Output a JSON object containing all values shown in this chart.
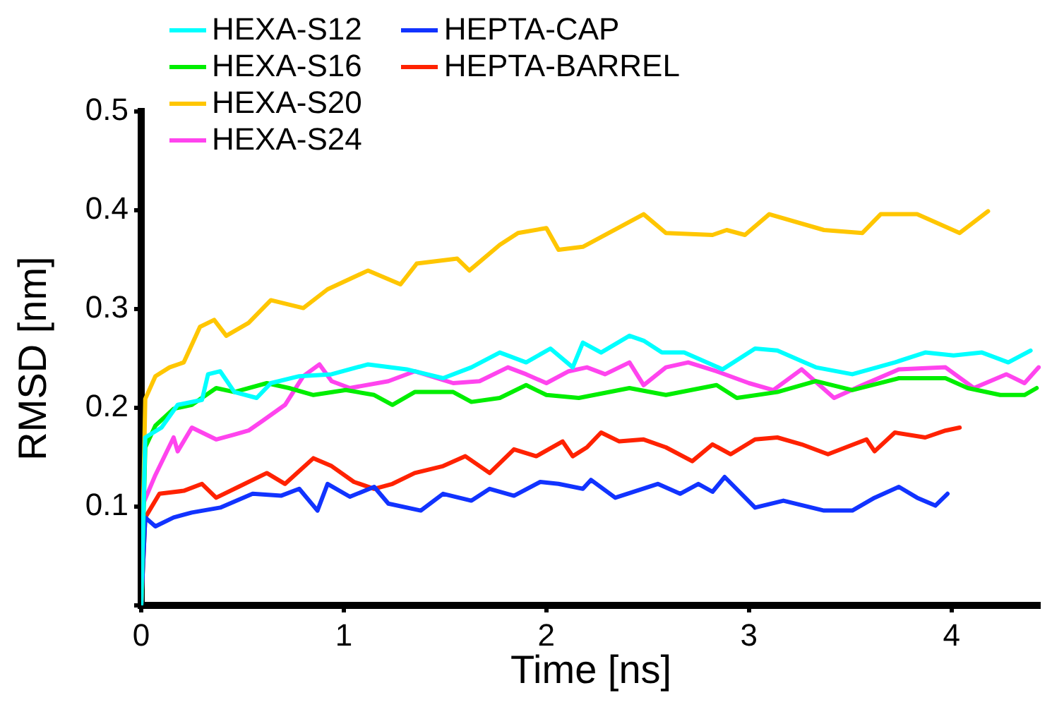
{
  "chart_data": {
    "type": "line",
    "xlabel": "Time [ns]",
    "ylabel": "RMSD [nm]",
    "xlim": [
      0,
      4.44
    ],
    "ylim": [
      0,
      0.5
    ],
    "xticks": [
      0,
      1,
      2,
      3,
      4
    ],
    "yticks": [
      {
        "value": 0,
        "label": null
      },
      0.1,
      0.2,
      0.3,
      0.4,
      0.5
    ],
    "legend": "top",
    "series": [
      {
        "name": "HEXA-S12",
        "color": "#00ffff",
        "x": [
          0,
          0.02,
          0.1,
          0.18,
          0.3,
          0.33,
          0.39,
          0.46,
          0.57,
          0.64,
          0.78,
          0.94,
          1.12,
          1.31,
          1.49,
          1.63,
          1.77,
          1.9,
          2.02,
          2.13,
          2.18,
          2.27,
          2.41,
          2.48,
          2.57,
          2.68,
          2.87,
          3.03,
          3.14,
          3.33,
          3.51,
          3.72,
          3.87,
          4.01,
          4.15,
          4.28,
          4.39
        ],
        "values": [
          0,
          0.17,
          0.18,
          0.203,
          0.208,
          0.234,
          0.237,
          0.216,
          0.21,
          0.225,
          0.232,
          0.234,
          0.244,
          0.239,
          0.23,
          0.241,
          0.256,
          0.246,
          0.26,
          0.241,
          0.266,
          0.256,
          0.273,
          0.268,
          0.256,
          0.256,
          0.239,
          0.26,
          0.258,
          0.241,
          0.234,
          0.246,
          0.256,
          0.253,
          0.256,
          0.246,
          0.258
        ]
      },
      {
        "name": "HEXA-S16",
        "color": "#00ee00",
        "x": [
          0,
          0.02,
          0.07,
          0.16,
          0.25,
          0.37,
          0.46,
          0.62,
          0.73,
          0.85,
          1.01,
          1.15,
          1.24,
          1.35,
          1.54,
          1.63,
          1.77,
          1.9,
          2.0,
          2.16,
          2.41,
          2.59,
          2.84,
          2.94,
          3.14,
          3.33,
          3.51,
          3.74,
          3.97,
          4.08,
          4.24,
          4.36,
          4.42
        ],
        "values": [
          0,
          0.16,
          0.182,
          0.199,
          0.203,
          0.22,
          0.216,
          0.225,
          0.22,
          0.213,
          0.218,
          0.213,
          0.203,
          0.216,
          0.216,
          0.206,
          0.21,
          0.223,
          0.213,
          0.21,
          0.22,
          0.213,
          0.223,
          0.21,
          0.216,
          0.227,
          0.218,
          0.23,
          0.23,
          0.22,
          0.213,
          0.213,
          0.22
        ]
      },
      {
        "name": "HEXA-S20",
        "color": "#ffc600",
        "x": [
          0,
          0.02,
          0.07,
          0.14,
          0.21,
          0.29,
          0.36,
          0.42,
          0.53,
          0.64,
          0.8,
          0.92,
          1.12,
          1.28,
          1.36,
          1.56,
          1.62,
          1.77,
          1.86,
          2.0,
          2.06,
          2.18,
          2.48,
          2.59,
          2.82,
          2.89,
          2.98,
          3.1,
          3.37,
          3.56,
          3.65,
          3.83,
          4.04,
          4.18
        ],
        "values": [
          0,
          0.209,
          0.232,
          0.241,
          0.246,
          0.282,
          0.289,
          0.273,
          0.286,
          0.309,
          0.301,
          0.32,
          0.339,
          0.325,
          0.346,
          0.351,
          0.339,
          0.365,
          0.377,
          0.382,
          0.36,
          0.363,
          0.396,
          0.377,
          0.375,
          0.38,
          0.375,
          0.396,
          0.38,
          0.377,
          0.396,
          0.396,
          0.377,
          0.399
        ]
      },
      {
        "name": "HEXA-S24",
        "color": "#ff44ee",
        "x": [
          0,
          0.01,
          0.07,
          0.16,
          0.18,
          0.25,
          0.37,
          0.46,
          0.53,
          0.6,
          0.71,
          0.8,
          0.88,
          0.94,
          1.03,
          1.22,
          1.35,
          1.54,
          1.67,
          1.81,
          1.9,
          2.0,
          2.11,
          2.2,
          2.29,
          2.41,
          2.48,
          2.59,
          2.7,
          2.84,
          3.0,
          3.12,
          3.26,
          3.42,
          3.56,
          3.74,
          3.97,
          4.11,
          4.27,
          4.36,
          4.43
        ],
        "values": [
          0,
          0.103,
          0.132,
          0.17,
          0.156,
          0.18,
          0.168,
          0.173,
          0.177,
          0.187,
          0.203,
          0.232,
          0.244,
          0.227,
          0.22,
          0.227,
          0.237,
          0.225,
          0.227,
          0.241,
          0.234,
          0.225,
          0.237,
          0.241,
          0.234,
          0.246,
          0.223,
          0.241,
          0.246,
          0.237,
          0.225,
          0.218,
          0.239,
          0.21,
          0.223,
          0.239,
          0.241,
          0.22,
          0.234,
          0.225,
          0.241
        ]
      },
      {
        "name": "HEPTA-CAP",
        "color": "#1133ff",
        "x": [
          0,
          0.02,
          0.07,
          0.16,
          0.25,
          0.39,
          0.55,
          0.69,
          0.78,
          0.87,
          0.92,
          1.03,
          1.15,
          1.22,
          1.38,
          1.49,
          1.63,
          1.72,
          1.84,
          1.97,
          2.06,
          2.18,
          2.22,
          2.34,
          2.55,
          2.66,
          2.75,
          2.82,
          2.88,
          3.03,
          3.17,
          3.37,
          3.51,
          3.62,
          3.74,
          3.83,
          3.92,
          3.98
        ],
        "values": [
          0,
          0.089,
          0.08,
          0.089,
          0.094,
          0.099,
          0.113,
          0.111,
          0.118,
          0.096,
          0.123,
          0.11,
          0.12,
          0.103,
          0.096,
          0.113,
          0.106,
          0.118,
          0.111,
          0.125,
          0.123,
          0.118,
          0.127,
          0.109,
          0.123,
          0.113,
          0.123,
          0.115,
          0.13,
          0.099,
          0.106,
          0.096,
          0.096,
          0.109,
          0.12,
          0.109,
          0.101,
          0.113
        ]
      },
      {
        "name": "HEPTA-BARREL",
        "color": "#ff2200",
        "x": [
          0,
          0.02,
          0.09,
          0.21,
          0.3,
          0.37,
          0.48,
          0.62,
          0.71,
          0.85,
          0.94,
          1.05,
          1.15,
          1.24,
          1.35,
          1.49,
          1.6,
          1.72,
          1.84,
          1.95,
          2.08,
          2.13,
          2.2,
          2.27,
          2.36,
          2.48,
          2.59,
          2.72,
          2.82,
          2.91,
          3.03,
          3.14,
          3.26,
          3.39,
          3.58,
          3.62,
          3.72,
          3.87,
          3.97,
          4.04
        ],
        "values": [
          0,
          0.089,
          0.113,
          0.116,
          0.123,
          0.109,
          0.12,
          0.134,
          0.123,
          0.149,
          0.141,
          0.125,
          0.118,
          0.123,
          0.134,
          0.141,
          0.151,
          0.134,
          0.158,
          0.151,
          0.166,
          0.151,
          0.16,
          0.175,
          0.166,
          0.168,
          0.16,
          0.146,
          0.163,
          0.153,
          0.168,
          0.17,
          0.163,
          0.153,
          0.168,
          0.156,
          0.175,
          0.17,
          0.177,
          0.18
        ]
      }
    ]
  }
}
